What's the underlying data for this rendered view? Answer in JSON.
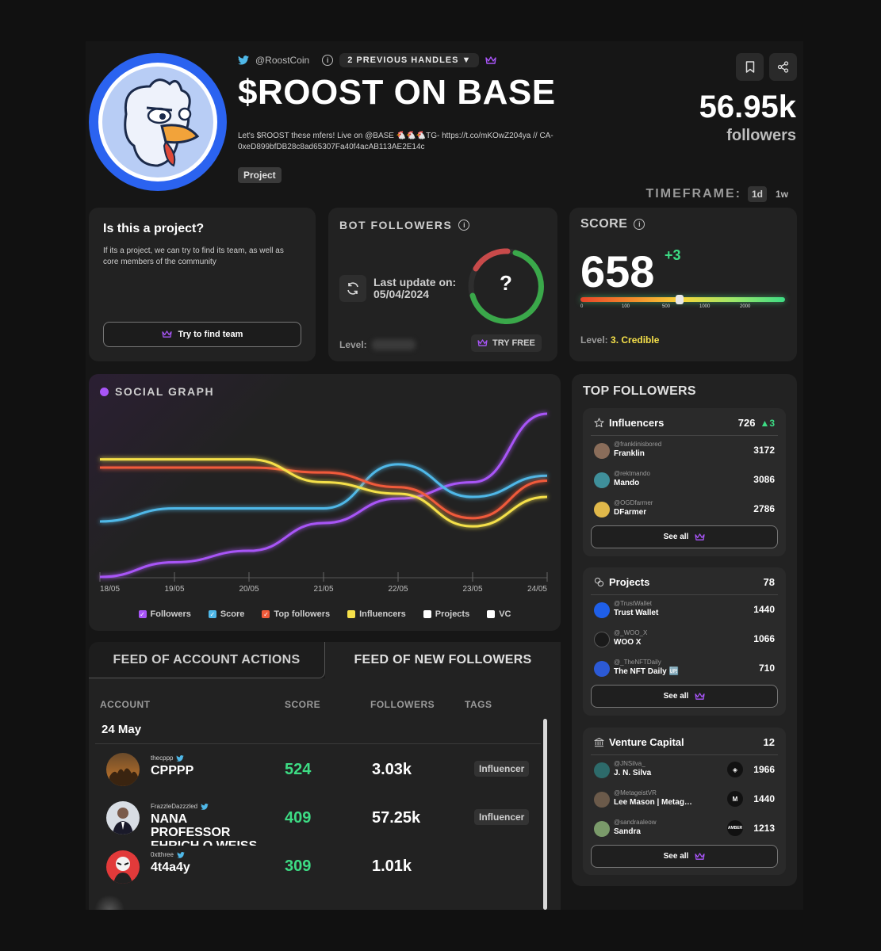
{
  "header": {
    "twitter_handle": "@RoostCoin",
    "previous_handles": "2 PREVIOUS HANDLES ▼",
    "title": "$ROOST ON BASE",
    "bio": "Let's $ROOST these mfers! Live on @BASE 🐔🐔🐔TG- https://t.co/mKOwZ204ya // CA- 0xeD899bfDB28c8ad65307Fa40f4acAB113AE2E14c",
    "tag": "Project",
    "followers_count": "56.95k",
    "followers_label": "followers",
    "timeframe_label": "TIMEFRAME:",
    "timeframe_options": [
      "1d",
      "1w"
    ]
  },
  "project_card": {
    "title": "Is this a project?",
    "description": "If its a project, we can try to find its team, as well as core members of the community",
    "button": "Try to find team"
  },
  "bot_card": {
    "title": "BOT FOLLOWERS",
    "last_update_label": "Last update on:",
    "last_update_date": "05/04/2024",
    "gauge_value": "?",
    "level_label": "Level:",
    "try_free": "TRY FREE"
  },
  "score_card": {
    "title": "SCORE",
    "value": "658",
    "delta": "+3",
    "ticks": [
      "0",
      "100",
      "500",
      "1000",
      "2000"
    ],
    "level_label": "Level:",
    "level_value": "3. Credible"
  },
  "social_graph": {
    "title": "SOCIAL GRAPH",
    "legend": [
      {
        "label": "Followers",
        "color": "#a855f7",
        "checked": true
      },
      {
        "label": "Score",
        "color": "#4fb8e8",
        "checked": true
      },
      {
        "label": "Top followers",
        "color": "#f05a3a",
        "checked": true
      },
      {
        "label": "Influencers",
        "color": "#f5e04a",
        "checked": false
      },
      {
        "label": "Projects",
        "color": "#ffffff",
        "checked": false
      },
      {
        "label": "VC",
        "color": "#ffffff",
        "checked": false
      }
    ]
  },
  "chart_data": {
    "type": "line",
    "x": [
      "18/05",
      "19/05",
      "20/05",
      "21/05",
      "22/05",
      "23/05",
      "24/05"
    ],
    "series": [
      {
        "name": "Followers",
        "color": "#a855f7",
        "values": [
          0.0,
          0.09,
          0.16,
          0.33,
          0.48,
          0.58,
          1.0
        ]
      },
      {
        "name": "Score",
        "color": "#4fb8e8",
        "values": [
          0.34,
          0.42,
          0.42,
          0.42,
          0.69,
          0.49,
          0.62
        ]
      },
      {
        "name": "Top followers",
        "color": "#f05a3a",
        "values": [
          0.67,
          0.67,
          0.67,
          0.64,
          0.55,
          0.36,
          0.59
        ]
      },
      {
        "name": "Influencers",
        "color": "#f5e04a",
        "values": [
          0.72,
          0.72,
          0.72,
          0.58,
          0.51,
          0.31,
          0.49
        ]
      }
    ],
    "ylim": [
      0,
      1
    ],
    "grid": false,
    "legend": "bottom"
  },
  "feed": {
    "tabs": [
      "FEED OF ACCOUNT ACTIONS",
      "FEED OF NEW FOLLOWERS"
    ],
    "columns": [
      "ACCOUNT",
      "SCORE",
      "FOLLOWERS",
      "TAGS"
    ],
    "date": "24 May",
    "rows": [
      {
        "handle": "thecppp",
        "name": "CPPPP",
        "score": "524",
        "followers": "3.03k",
        "tag": "Influencer"
      },
      {
        "handle": "FrazzleDazzzled",
        "name": "NANA PROFESSOR EHRICH O WEISS",
        "score": "409",
        "followers": "57.25k",
        "tag": "Influencer"
      },
      {
        "handle": "0xtthree",
        "name": "4t4a4y",
        "score": "309",
        "followers": "1.01k",
        "tag": ""
      }
    ]
  },
  "top_followers": {
    "title": "TOP FOLLOWERS",
    "see_all": "See all",
    "influencers": {
      "title": "Influencers",
      "count": "726",
      "delta": "▲3",
      "rows": [
        {
          "handle": "@franklinisbored",
          "name": "Franklin",
          "value": "3172",
          "color": "#8a6d5a"
        },
        {
          "handle": "@rektmando",
          "name": "Mando",
          "value": "3086",
          "color": "#3f8f9a"
        },
        {
          "handle": "@OGDfarmer",
          "name": "DFarmer",
          "value": "2786",
          "color": "#e0b84a"
        }
      ]
    },
    "projects": {
      "title": "Projects",
      "count": "78",
      "rows": [
        {
          "handle": "@TrustWallet",
          "name": "Trust Wallet",
          "value": "1440",
          "color": "#1f5fe8"
        },
        {
          "handle": "@_WOO_X",
          "name": "WOO X",
          "value": "1066",
          "color": "#1a1a1a"
        },
        {
          "handle": "@_TheNFTDaily",
          "name": "The NFT Daily 🆙",
          "value": "710",
          "color": "#2c5ad6"
        }
      ]
    },
    "vc": {
      "title": "Venture Capital",
      "count": "12",
      "rows": [
        {
          "handle": "@JNSilva_",
          "name": "J. N. Silva",
          "value": "1966",
          "color": "#2d6a6a",
          "logo": "◈"
        },
        {
          "handle": "@MetageistVR",
          "name": "Lee Mason | Metag…",
          "value": "1440",
          "color": "#6b5a4a",
          "logo": "M"
        },
        {
          "handle": "@sandraaleow",
          "name": "Sandra",
          "value": "1213",
          "color": "#7a9a6a",
          "logo": "AMBER"
        }
      ]
    }
  }
}
